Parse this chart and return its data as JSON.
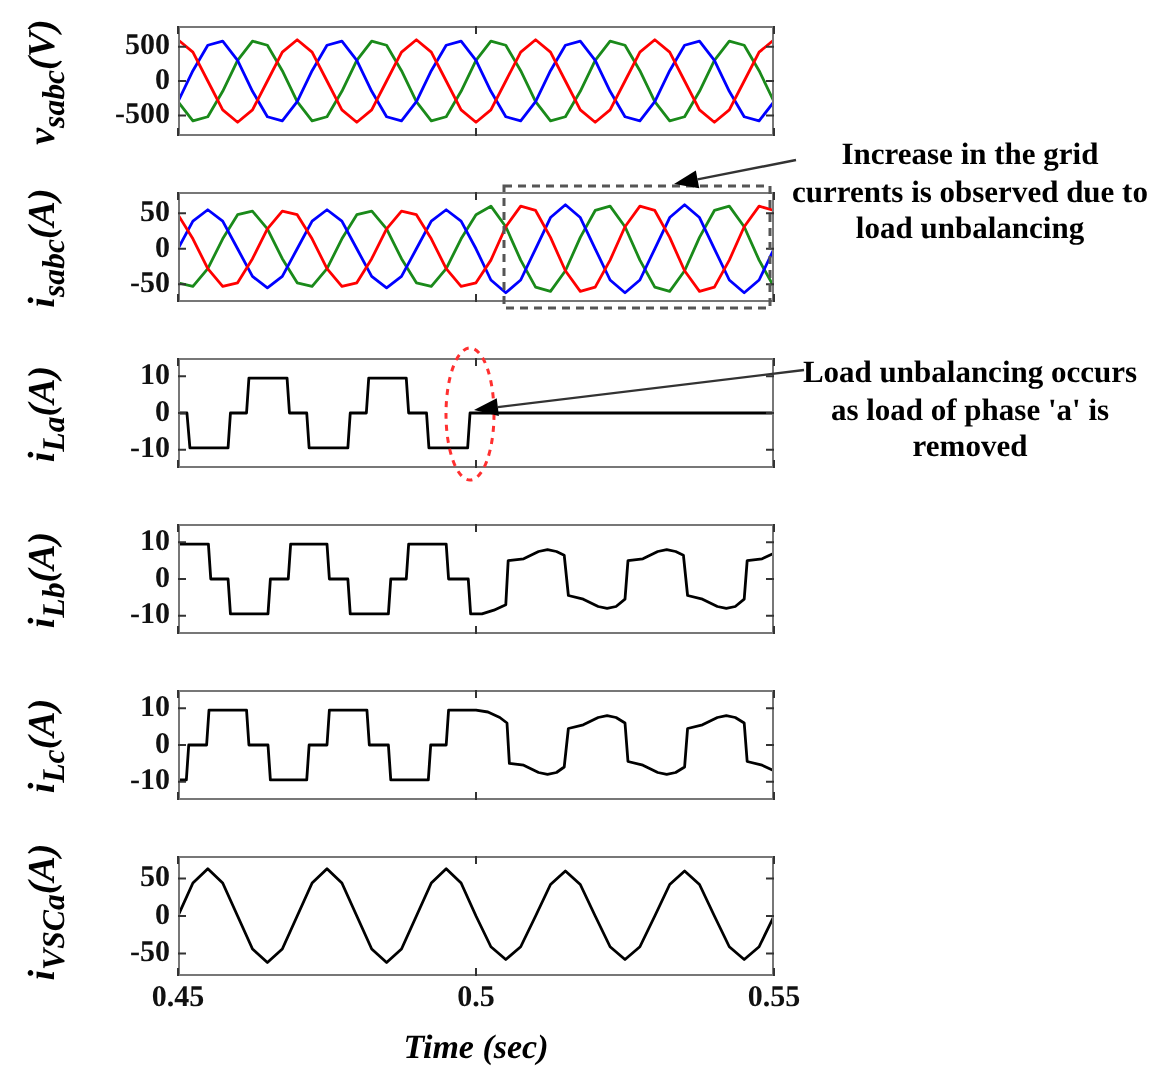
{
  "chart_data": [
    {
      "type": "line",
      "ylabel": "v$_{sabc}$(V)",
      "tick_labels": "y",
      "xlim": [
        0.45,
        0.55
      ],
      "xticks": [
        0.45,
        0.5,
        0.55
      ],
      "ylim": [
        -800,
        800
      ],
      "yticks": [
        -500,
        0,
        500
      ],
      "x": [
        0.45,
        0.4525,
        0.455,
        0.4575,
        0.46,
        0.4625,
        0.465,
        0.4675,
        0.47,
        0.4725,
        0.475,
        0.4775,
        0.48,
        0.4825,
        0.485,
        0.4875,
        0.49,
        0.4925,
        0.495,
        0.4975,
        0.5,
        0.5025,
        0.505,
        0.5075,
        0.51,
        0.5125,
        0.515,
        0.5175,
        0.52,
        0.5225,
        0.525,
        0.5275,
        0.53,
        0.5325,
        0.535,
        0.5375,
        0.54,
        0.5425,
        0.545,
        0.5475,
        0.55
      ],
      "series": [
        {
          "color": "#ff0000",
          "values": [
            600,
            420,
            0,
            -420,
            -600,
            -420,
            0,
            420,
            600,
            420,
            0,
            -420,
            -600,
            -420,
            0,
            420,
            600,
            420,
            0,
            -420,
            -600,
            -420,
            0,
            420,
            600,
            420,
            0,
            -420,
            -600,
            -420,
            0,
            420,
            600,
            420,
            0,
            -420,
            -600,
            -420,
            0,
            420,
            600
          ]
        },
        {
          "color": "#0000ff",
          "values": [
            -300,
            150,
            520,
            580,
            300,
            -150,
            -520,
            -580,
            -300,
            150,
            520,
            580,
            300,
            -150,
            -520,
            -580,
            -300,
            150,
            520,
            580,
            300,
            -150,
            -520,
            -580,
            -300,
            150,
            520,
            580,
            300,
            -150,
            -520,
            -580,
            -300,
            150,
            520,
            580,
            300,
            -150,
            -520,
            -580,
            -300
          ]
        },
        {
          "color": "#1a8a1a",
          "values": [
            -300,
            -580,
            -520,
            -150,
            300,
            580,
            520,
            150,
            -300,
            -580,
            -520,
            -150,
            300,
            580,
            520,
            150,
            -300,
            -580,
            -520,
            -150,
            300,
            580,
            520,
            150,
            -300,
            -580,
            -520,
            -150,
            300,
            580,
            520,
            150,
            -300,
            -580,
            -520,
            -150,
            300,
            580,
            520,
            150,
            -300
          ]
        }
      ]
    },
    {
      "type": "line",
      "ylabel": "i$_{sabc}$(A)",
      "tick_labels": "y",
      "xlim": [
        0.45,
        0.55
      ],
      "xticks": [
        0.45,
        0.5,
        0.55
      ],
      "ylim": [
        -75,
        80
      ],
      "yticks": [
        -50,
        0,
        50
      ],
      "annotations": [
        "Increase in the grid currents is observed due to load unbalancing"
      ],
      "x": [
        0.45,
        0.4525,
        0.455,
        0.4575,
        0.46,
        0.4625,
        0.465,
        0.4675,
        0.47,
        0.4725,
        0.475,
        0.4775,
        0.48,
        0.4825,
        0.485,
        0.4875,
        0.49,
        0.4925,
        0.495,
        0.4975,
        0.5,
        0.5025,
        0.505,
        0.5075,
        0.51,
        0.5125,
        0.515,
        0.5175,
        0.52,
        0.5225,
        0.525,
        0.5275,
        0.53,
        0.5325,
        0.535,
        0.5375,
        0.54,
        0.5425,
        0.545,
        0.5475,
        0.55
      ],
      "series": [
        {
          "color": "#ff0000",
          "values": [
            48,
            14,
            -28,
            -53,
            -48,
            -14,
            28,
            53,
            48,
            14,
            -28,
            -53,
            -48,
            -14,
            28,
            53,
            48,
            14,
            -28,
            -53,
            -48,
            -16,
            31,
            60,
            54,
            16,
            -31,
            -60,
            -54,
            -16,
            31,
            60,
            54,
            16,
            -31,
            -60,
            -54,
            -16,
            31,
            60,
            54
          ]
        },
        {
          "color": "#0000ff",
          "values": [
            0,
            39,
            55,
            39,
            0,
            -39,
            -55,
            -39,
            0,
            39,
            55,
            39,
            0,
            -39,
            -55,
            -39,
            0,
            39,
            55,
            39,
            0,
            -44,
            -62,
            -44,
            0,
            44,
            62,
            44,
            0,
            -44,
            -62,
            -44,
            0,
            44,
            62,
            44,
            0,
            -44,
            -62,
            -44,
            0
          ]
        },
        {
          "color": "#1a8a1a",
          "values": [
            -48,
            -53,
            -28,
            14,
            48,
            53,
            28,
            -14,
            -48,
            -53,
            -28,
            14,
            48,
            53,
            28,
            -14,
            -48,
            -53,
            -28,
            14,
            48,
            60,
            31,
            -16,
            -54,
            -60,
            -31,
            16,
            54,
            60,
            31,
            -16,
            -54,
            -60,
            -31,
            16,
            54,
            60,
            31,
            -16,
            -54
          ]
        }
      ]
    },
    {
      "type": "line",
      "ylabel": "i$_{La}$(A)",
      "tick_labels": "y",
      "xlim": [
        0.45,
        0.55
      ],
      "xticks": [
        0.45,
        0.5,
        0.55
      ],
      "ylim": [
        -15,
        15
      ],
      "yticks": [
        -10,
        0,
        10
      ],
      "annotations": [
        "Load unbalancing occurs as load of phase 'a' is removed"
      ],
      "series": [
        {
          "color": "#000000",
          "x": [
            0.45,
            0.4515,
            0.452,
            0.4584,
            0.4588,
            0.4615,
            0.4619,
            0.4683,
            0.4687,
            0.4716,
            0.472,
            0.4785,
            0.4789,
            0.4816,
            0.482,
            0.4883,
            0.4887,
            0.4917,
            0.4921,
            0.4986,
            0.499,
            0.55
          ],
          "values": [
            0,
            0,
            -9.5,
            -9.5,
            0,
            0,
            9.5,
            9.5,
            0,
            0,
            -9.5,
            -9.5,
            0,
            0,
            9.5,
            9.5,
            0,
            0,
            -9.5,
            -9.5,
            0,
            0
          ]
        }
      ]
    },
    {
      "type": "line",
      "ylabel": "i$_{Lb}$(A)",
      "tick_labels": "y",
      "xlim": [
        0.45,
        0.55
      ],
      "xticks": [
        0.45,
        0.5,
        0.55
      ],
      "ylim": [
        -15,
        15
      ],
      "yticks": [
        -10,
        0,
        10
      ],
      "series": [
        {
          "color": "#000000",
          "x": [
            0.45,
            0.4551,
            0.4555,
            0.4584,
            0.4588,
            0.4651,
            0.4655,
            0.4685,
            0.4689,
            0.475,
            0.4754,
            0.4785,
            0.4789,
            0.4853,
            0.4857,
            0.4883,
            0.4887,
            0.495,
            0.4954,
            0.4987,
            0.4991,
            0.501,
            0.503,
            0.505,
            0.5054,
            0.508,
            0.5105,
            0.512,
            0.5135,
            0.5148,
            0.5155,
            0.518,
            0.5205,
            0.522,
            0.5235,
            0.525,
            0.5255,
            0.528,
            0.5305,
            0.532,
            0.5335,
            0.5348,
            0.5355,
            0.538,
            0.5405,
            0.542,
            0.5435,
            0.545,
            0.5455,
            0.548,
            0.55
          ],
          "values": [
            9.5,
            9.5,
            0,
            0,
            -9.5,
            -9.5,
            0,
            0,
            9.5,
            9.5,
            0,
            0,
            -9.5,
            -9.5,
            0,
            0,
            9.5,
            9.5,
            0,
            0,
            -9.5,
            -9.5,
            -8.5,
            -7,
            5,
            5.5,
            7.5,
            8,
            7.5,
            6.5,
            -4.5,
            -5.5,
            -7.5,
            -8,
            -7.5,
            -5.5,
            5,
            5.5,
            7.5,
            8,
            7.5,
            6.5,
            -4.5,
            -5.5,
            -7.5,
            -8,
            -7.5,
            -5.5,
            5,
            5.5,
            7
          ]
        }
      ]
    },
    {
      "type": "line",
      "ylabel": "i$_{Lc}$(A)",
      "tick_labels": "y",
      "xlim": [
        0.45,
        0.55
      ],
      "xticks": [
        0.45,
        0.5,
        0.55
      ],
      "ylim": [
        -15,
        15
      ],
      "yticks": [
        -10,
        0,
        10
      ],
      "series": [
        {
          "color": "#000000",
          "x": [
            0.45,
            0.4514,
            0.4518,
            0.4548,
            0.4552,
            0.4615,
            0.4619,
            0.4651,
            0.4655,
            0.4716,
            0.472,
            0.475,
            0.4754,
            0.4817,
            0.4821,
            0.4853,
            0.4857,
            0.492,
            0.4924,
            0.495,
            0.4954,
            0.5,
            0.502,
            0.504,
            0.5052,
            0.5056,
            0.508,
            0.5105,
            0.512,
            0.5135,
            0.5148,
            0.5155,
            0.518,
            0.5205,
            0.522,
            0.5235,
            0.525,
            0.5255,
            0.528,
            0.5305,
            0.532,
            0.5335,
            0.535,
            0.5355,
            0.538,
            0.5405,
            0.542,
            0.5435,
            0.545,
            0.5455,
            0.548,
            0.55
          ],
          "values": [
            -9.5,
            -9.5,
            0,
            0,
            9.5,
            9.5,
            0,
            0,
            -9.5,
            -9.5,
            0,
            0,
            9.5,
            9.5,
            0,
            0,
            -9.5,
            -9.5,
            0,
            0,
            9.5,
            9.5,
            9,
            7.5,
            6,
            -5,
            -5.5,
            -7.5,
            -8,
            -7.5,
            -6,
            4.5,
            5.5,
            7.5,
            8,
            7.5,
            6,
            -4.5,
            -5.5,
            -7.5,
            -8,
            -7.5,
            -6,
            4.5,
            5.5,
            7.5,
            8,
            7.5,
            6,
            -4.5,
            -5.5,
            -7
          ]
        }
      ]
    },
    {
      "type": "line",
      "ylabel": "i$_{VSCa}$(A)",
      "xlabel": "Time (sec)",
      "xlim": [
        0.45,
        0.55
      ],
      "xticks": [
        0.45,
        0.5,
        0.55
      ],
      "ylim": [
        -80,
        80
      ],
      "yticks": [
        -50,
        0,
        50
      ],
      "x": [
        0.45,
        0.4525,
        0.455,
        0.4575,
        0.46,
        0.4625,
        0.465,
        0.4675,
        0.47,
        0.4725,
        0.475,
        0.4775,
        0.48,
        0.4825,
        0.485,
        0.4875,
        0.49,
        0.4925,
        0.495,
        0.4975,
        0.5,
        0.5025,
        0.505,
        0.5075,
        0.51,
        0.5125,
        0.515,
        0.5175,
        0.52,
        0.5225,
        0.525,
        0.5275,
        0.53,
        0.5325,
        0.535,
        0.5375,
        0.54,
        0.5425,
        0.545,
        0.5475,
        0.55
      ],
      "series": [
        {
          "color": "#000000",
          "values": [
            0,
            44,
            63,
            44,
            0,
            -44,
            -62,
            -44,
            0,
            44,
            63,
            44,
            0,
            -44,
            -62,
            -44,
            0,
            44,
            63,
            44,
            0,
            -41,
            -58,
            -41,
            0,
            42,
            60,
            42,
            0,
            -41,
            -58,
            -41,
            0,
            42,
            60,
            42,
            0,
            -41,
            -58,
            -41,
            0
          ]
        }
      ]
    }
  ]
}
